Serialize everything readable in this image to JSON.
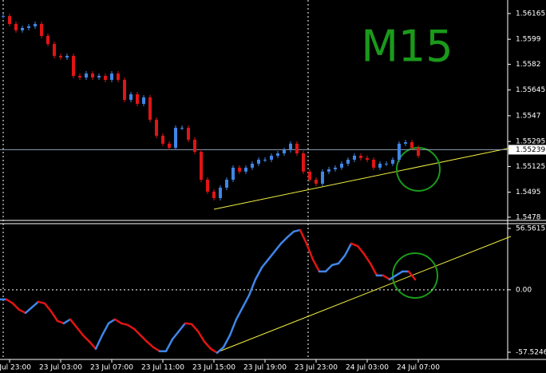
{
  "chart_data": [
    {
      "type": "candlestick",
      "label": "M15",
      "up_color": "#3f86e8",
      "down_color": "#e01515",
      "ylim": [
        1.54758,
        1.56257
      ],
      "yticks": [
        1.56165,
        1.5599,
        1.5582,
        1.55645,
        1.5547,
        1.55295,
        1.55125,
        1.5495,
        1.5478
      ],
      "current_price": 1.55239,
      "close": [
        1.56148,
        1.56094,
        1.56051,
        1.56067,
        1.56078,
        1.56094,
        1.56013,
        1.55958,
        1.55877,
        1.55866,
        1.55877,
        1.55741,
        1.5573,
        1.55757,
        1.5573,
        1.55741,
        1.55714,
        1.55757,
        1.55714,
        1.55578,
        1.55616,
        1.55551,
        1.55595,
        1.55443,
        1.55334,
        1.5528,
        1.55252,
        1.55388,
        1.55388,
        1.55307,
        1.55225,
        1.55035,
        1.54954,
        1.5491,
        1.54981,
        1.55035,
        1.55117,
        1.5509,
        1.55117,
        1.55144,
        1.55171,
        1.55171,
        1.55198,
        1.55214,
        1.55236,
        1.5528,
        1.55214,
        1.5509,
        1.55035,
        1.55008,
        1.5509,
        1.55106,
        1.55117,
        1.55144,
        1.55171,
        1.55198,
        1.55182,
        1.55171,
        1.55117,
        1.55144,
        1.55144,
        1.55171,
        1.5528,
        1.5529,
        1.55252,
        1.55198
      ]
    },
    {
      "type": "line",
      "up_color": "#3f86e8",
      "down_color": "#e01515",
      "ylim": [
        -64.14,
        60.97
      ],
      "yticks": [
        56.5615,
        {
          "value": 0,
          "label": "0.00"
        },
        -57.5246
      ],
      "values": [
        -8.82,
        -8.82,
        -12.49,
        -18.37,
        -21.31,
        -16.16,
        -11.02,
        -12.49,
        -19.84,
        -28.66,
        -30.86,
        -27.19,
        -34.53,
        -41.88,
        -47.76,
        -54.37,
        -41.88,
        -30.86,
        -27.19,
        -30.86,
        -32.33,
        -36.0,
        -41.88,
        -47.76,
        -52.9,
        -56.58,
        -56.58,
        -45.55,
        -38.21,
        -30.86,
        -31.59,
        -38.21,
        -47.76,
        -54.37,
        -58.05,
        -52.9,
        -41.88,
        -27.19,
        -16.16,
        -5.14,
        9.55,
        20.57,
        27.92,
        35.27,
        42.62,
        48.49,
        53.64,
        55.11,
        42.62,
        27.92,
        16.9,
        16.9,
        22.78,
        24.25,
        31.59,
        42.62,
        40.41,
        33.06,
        24.25,
        13.23,
        13.23,
        9.55,
        13.23,
        16.9,
        16.9,
        9.55
      ],
      "xtick_labels": [
        "22 Jul 23:00",
        "23 Jul 03:00",
        "23 Jul 07:00",
        "23 Jul 11:00",
        "23 Jul 15:00",
        "23 Jul 19:00",
        "23 Jul 23:00",
        "24 Jul 03:00",
        "24 Jul 07:00"
      ]
    }
  ]
}
